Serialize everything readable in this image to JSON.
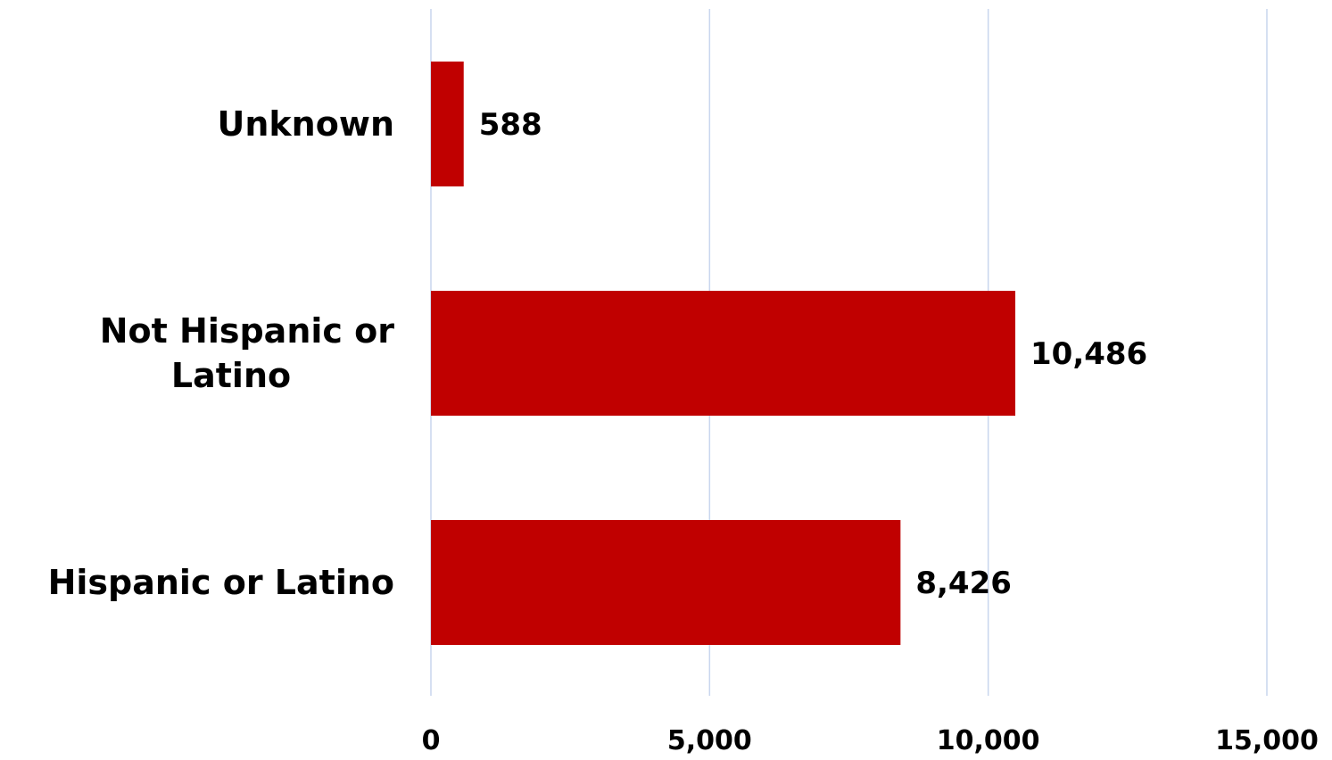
{
  "chart_data": {
    "type": "bar",
    "orientation": "horizontal",
    "categories": [
      "Unknown",
      "Not Hispanic or Latino",
      "Hispanic or Latino"
    ],
    "category_label_lines": [
      [
        "Unknown"
      ],
      [
        "Not Hispanic or",
        "Latino"
      ],
      [
        "Hispanic or Latino"
      ]
    ],
    "values": [
      588,
      10486,
      8426
    ],
    "data_labels": [
      "588",
      "10,486",
      "8,426"
    ],
    "x_ticks": [
      0,
      5000,
      10000,
      15000
    ],
    "x_tick_labels": [
      "0",
      "5,000",
      "10,000",
      "15,000"
    ],
    "xlim": [
      0,
      15000
    ],
    "grid": "vertical",
    "legend": "none",
    "title": "",
    "xlabel": "",
    "ylabel": "",
    "colors": {
      "bar": "#C00000",
      "grid": "#C9D6EE",
      "text": "#000000"
    }
  }
}
